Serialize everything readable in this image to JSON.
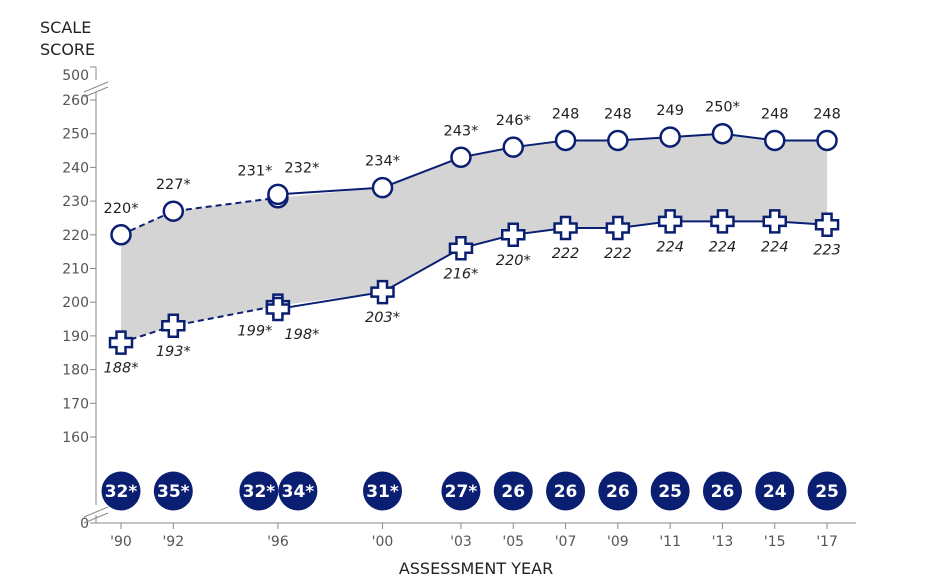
{
  "chart_data": {
    "type": "line",
    "ylabel_line1": "SCALE",
    "ylabel_line2": "SCORE",
    "xlabel": "ASSESSMENT YEAR",
    "ylim": [
      160,
      260
    ],
    "y_break_ticks": [
      "500",
      "0"
    ],
    "y_ticks": [
      160,
      170,
      180,
      190,
      200,
      210,
      220,
      230,
      240,
      250,
      260
    ],
    "x_ticks": [
      {
        "year": 1990,
        "label": "'90"
      },
      {
        "year": 1992,
        "label": "'92"
      },
      {
        "year": 1996,
        "label": "'96"
      },
      {
        "year": 2000,
        "label": "'00"
      },
      {
        "year": 2003,
        "label": "'03"
      },
      {
        "year": 2005,
        "label": "'05"
      },
      {
        "year": 2007,
        "label": "'07"
      },
      {
        "year": 2009,
        "label": "'09"
      },
      {
        "year": 2011,
        "label": "'11"
      },
      {
        "year": 2013,
        "label": "'13"
      },
      {
        "year": 2015,
        "label": "'15"
      },
      {
        "year": 2017,
        "label": "'17"
      }
    ],
    "colors": {
      "line": "#0b1f72",
      "band": "#d4d4d4",
      "axis": "#8a8a8a"
    },
    "series": [
      {
        "name": "upper-not-accommodated",
        "marker": "circle",
        "dashed": true,
        "position": "above",
        "points": [
          {
            "x": 1990,
            "y": 220,
            "label": "220*"
          },
          {
            "x": 1992,
            "y": 227,
            "label": "227*"
          },
          {
            "x": 1996,
            "y": 231,
            "label": "231*"
          }
        ]
      },
      {
        "name": "upper-accommodated",
        "marker": "circle",
        "dashed": false,
        "position": "above",
        "points": [
          {
            "x": 1996,
            "y": 232,
            "label": "232*"
          },
          {
            "x": 2000,
            "y": 234,
            "label": "234*"
          },
          {
            "x": 2003,
            "y": 243,
            "label": "243*"
          },
          {
            "x": 2005,
            "y": 246,
            "label": "246*"
          },
          {
            "x": 2007,
            "y": 248,
            "label": "248"
          },
          {
            "x": 2009,
            "y": 248,
            "label": "248"
          },
          {
            "x": 2011,
            "y": 249,
            "label": "249"
          },
          {
            "x": 2013,
            "y": 250,
            "label": "250*"
          },
          {
            "x": 2015,
            "y": 248,
            "label": "248"
          },
          {
            "x": 2017,
            "y": 248,
            "label": "248"
          }
        ]
      },
      {
        "name": "lower-not-accommodated",
        "marker": "plus",
        "dashed": true,
        "position": "below",
        "points": [
          {
            "x": 1990,
            "y": 188,
            "label": "188*"
          },
          {
            "x": 1992,
            "y": 193,
            "label": "193*"
          },
          {
            "x": 1996,
            "y": 199,
            "label": "199*"
          }
        ]
      },
      {
        "name": "lower-accommodated",
        "marker": "plus",
        "dashed": false,
        "position": "below",
        "points": [
          {
            "x": 1996,
            "y": 198,
            "label": "198*"
          },
          {
            "x": 2000,
            "y": 203,
            "label": "203*"
          },
          {
            "x": 2003,
            "y": 216,
            "label": "216*"
          },
          {
            "x": 2005,
            "y": 220,
            "label": "220*"
          },
          {
            "x": 2007,
            "y": 222,
            "label": "222"
          },
          {
            "x": 2009,
            "y": 222,
            "label": "222"
          },
          {
            "x": 2011,
            "y": 224,
            "label": "224"
          },
          {
            "x": 2013,
            "y": 224,
            "label": "224"
          },
          {
            "x": 2015,
            "y": 224,
            "label": "224"
          },
          {
            "x": 2017,
            "y": 223,
            "label": "223"
          }
        ]
      }
    ],
    "score_gaps": [
      {
        "x": 1990,
        "label": "32*"
      },
      {
        "x": 1992,
        "label": "35*"
      },
      {
        "x": 1996,
        "label": "32*"
      },
      {
        "x": 1996,
        "label": "34*",
        "accommodated": true
      },
      {
        "x": 2000,
        "label": "31*"
      },
      {
        "x": 2003,
        "label": "27*"
      },
      {
        "x": 2005,
        "label": "26"
      },
      {
        "x": 2007,
        "label": "26"
      },
      {
        "x": 2009,
        "label": "26"
      },
      {
        "x": 2011,
        "label": "25"
      },
      {
        "x": 2013,
        "label": "26"
      },
      {
        "x": 2015,
        "label": "24"
      },
      {
        "x": 2017,
        "label": "25"
      }
    ]
  }
}
